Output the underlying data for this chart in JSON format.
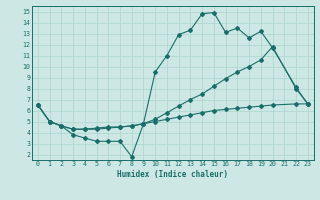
{
  "xlabel": "Humidex (Indice chaleur)",
  "bg_color": "#cde8e4",
  "grid_color": "#b0d8d0",
  "line_color": "#1a6e6a",
  "xlim": [
    -0.5,
    23.5
  ],
  "ylim": [
    1.5,
    15.5
  ],
  "yticks": [
    2,
    3,
    4,
    5,
    6,
    7,
    8,
    9,
    10,
    11,
    12,
    13,
    14,
    15
  ],
  "xticks": [
    0,
    1,
    2,
    3,
    4,
    5,
    6,
    7,
    8,
    9,
    10,
    11,
    12,
    13,
    14,
    15,
    16,
    17,
    18,
    19,
    20,
    21,
    22,
    23
  ],
  "line1_x": [
    0,
    1,
    2,
    3,
    4,
    5,
    6,
    7,
    8,
    9,
    10,
    11,
    12,
    13,
    14,
    15,
    16,
    17,
    18,
    19,
    20,
    22,
    23
  ],
  "line1_y": [
    6.5,
    5.0,
    4.6,
    3.8,
    3.5,
    3.2,
    3.2,
    3.2,
    1.8,
    4.8,
    9.5,
    11.0,
    12.9,
    13.3,
    14.8,
    14.9,
    13.1,
    13.5,
    12.6,
    13.2,
    11.7,
    8.1,
    6.6
  ],
  "line2_x": [
    0,
    1,
    2,
    3,
    4,
    5,
    6,
    7,
    8,
    9,
    10,
    11,
    12,
    13,
    14,
    15,
    16,
    17,
    18,
    19,
    20,
    22,
    23
  ],
  "line2_y": [
    6.5,
    5.0,
    4.6,
    4.3,
    4.3,
    4.3,
    4.4,
    4.5,
    4.6,
    4.8,
    5.2,
    5.8,
    6.4,
    7.0,
    7.5,
    8.2,
    8.9,
    9.5,
    10.0,
    10.6,
    11.8,
    8.0,
    6.6
  ],
  "line3_x": [
    0,
    1,
    2,
    3,
    4,
    5,
    6,
    7,
    8,
    9,
    10,
    11,
    12,
    13,
    14,
    15,
    16,
    17,
    18,
    19,
    20,
    22,
    23
  ],
  "line3_y": [
    6.5,
    5.0,
    4.6,
    4.3,
    4.3,
    4.4,
    4.5,
    4.5,
    4.6,
    4.8,
    5.0,
    5.2,
    5.4,
    5.6,
    5.8,
    6.0,
    6.1,
    6.2,
    6.3,
    6.4,
    6.5,
    6.6,
    6.6
  ]
}
